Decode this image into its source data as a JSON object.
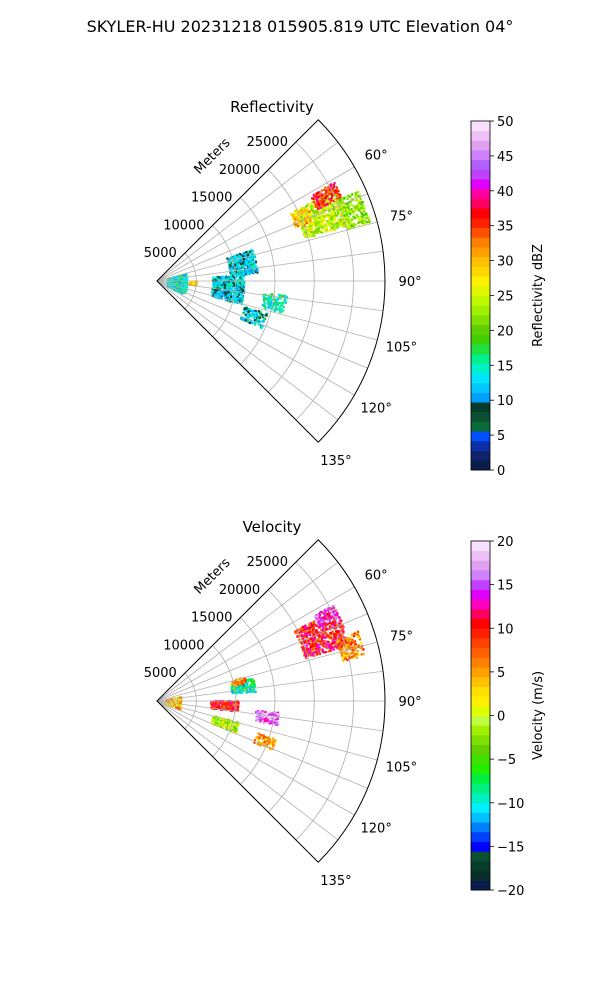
{
  "figure": {
    "suptitle": "SKYLER-HU  20231218  015905.819 UTC Elevation 04°"
  },
  "chart_data": [
    {
      "type": "heatmap",
      "projection": "polar-sector",
      "title": "Reflectivity",
      "radial_axis_label": "Meters",
      "radial_ticks": [
        5000,
        10000,
        15000,
        20000,
        25000
      ],
      "radial_max": 29000,
      "angle_ticks_deg": [
        60,
        75,
        90,
        105,
        120,
        135
      ],
      "angle_tick_labels": [
        "60°",
        "75°",
        "90°",
        "105°",
        "120°",
        "135°"
      ],
      "angle_range_deg": [
        45,
        135
      ],
      "grid": true,
      "colorbar": {
        "label": "Reflectivity dBZ",
        "min": 0,
        "max": 50,
        "ticks": [
          0,
          5,
          10,
          15,
          20,
          25,
          30,
          35,
          40,
          45,
          50
        ],
        "colors": [
          "#0b1d4a",
          "#10246e",
          "#0a2fa8",
          "#0050ff",
          "#0a6a3a",
          "#0b4f33",
          "#063d2a",
          "#00a0ff",
          "#00c8ff",
          "#00e6ff",
          "#00f0c8",
          "#00f08c",
          "#20e040",
          "#40d000",
          "#60d000",
          "#80e000",
          "#a0f000",
          "#c0f800",
          "#e0f800",
          "#fff000",
          "#ffd800",
          "#ffc000",
          "#ffa000",
          "#ff8000",
          "#ff5000",
          "#ff2000",
          "#ff0000",
          "#ff0060",
          "#ff00a0",
          "#e000ff",
          "#c040ff",
          "#b060ff",
          "#d080ff",
          "#e0a0f0",
          "#f0c0f8",
          "#f8e0ff"
        ]
      },
      "echo_regions": [
        {
          "az": 68,
          "r": 22500,
          "daz": 11,
          "dr": 6000,
          "value": 24,
          "density": 0.85
        },
        {
          "az": 63,
          "r": 24000,
          "daz": 5,
          "dr": 3500,
          "value": 36,
          "density": 0.8
        },
        {
          "az": 70,
          "r": 26500,
          "daz": 9,
          "dr": 3000,
          "value": 22,
          "density": 0.75
        },
        {
          "az": 66,
          "r": 20000,
          "daz": 6,
          "dr": 2500,
          "value": 30,
          "density": 0.6
        },
        {
          "az": 78,
          "r": 11000,
          "daz": 14,
          "dr": 3500,
          "value": 12,
          "density": 0.7
        },
        {
          "az": 95,
          "r": 9000,
          "daz": 20,
          "dr": 4000,
          "value": 12,
          "density": 0.65
        },
        {
          "az": 100,
          "r": 15000,
          "daz": 8,
          "dr": 3000,
          "value": 15,
          "density": 0.5
        },
        {
          "az": 95,
          "r": 2500,
          "daz": 40,
          "dr": 2500,
          "value": 14,
          "density": 0.7
        },
        {
          "az": 110,
          "r": 13000,
          "daz": 8,
          "dr": 3000,
          "value": 12,
          "density": 0.5
        },
        {
          "az": 92,
          "r": 4500,
          "daz": 6,
          "dr": 1000,
          "value": 30,
          "density": 0.5
        }
      ]
    },
    {
      "type": "heatmap",
      "projection": "polar-sector",
      "title": "Velocity",
      "radial_axis_label": "Meters",
      "radial_ticks": [
        5000,
        10000,
        15000,
        20000,
        25000
      ],
      "radial_max": 29000,
      "angle_ticks_deg": [
        60,
        75,
        90,
        105,
        120,
        135
      ],
      "angle_tick_labels": [
        "60°",
        "75°",
        "90°",
        "105°",
        "120°",
        "135°"
      ],
      "angle_range_deg": [
        45,
        135
      ],
      "grid": true,
      "colorbar": {
        "label": "Velocity (m/s)",
        "min": -20,
        "max": 20,
        "ticks": [
          -20,
          -15,
          -10,
          -5,
          0,
          5,
          10,
          15,
          20
        ],
        "colors": [
          "#0b1d4a",
          "#0a2f2a",
          "#063d2a",
          "#0b4f33",
          "#0000ff",
          "#0040ff",
          "#0080ff",
          "#00c0ff",
          "#00f0ff",
          "#00f0c0",
          "#00f080",
          "#00f040",
          "#20f000",
          "#40e000",
          "#60d000",
          "#80e000",
          "#a0f000",
          "#c0ff40",
          "#e0ff00",
          "#fff000",
          "#ffe000",
          "#ffc000",
          "#ffa000",
          "#ff8000",
          "#ff6000",
          "#ff4000",
          "#ff2000",
          "#ff0000",
          "#ff0060",
          "#ff00c0",
          "#e000ff",
          "#c040ff",
          "#d080ff",
          "#e0a0f0",
          "#f0c0f8",
          "#f8e0ff"
        ]
      },
      "echo_regions": [
        {
          "az": 68,
          "r": 22500,
          "daz": 11,
          "dr": 6000,
          "value": 10,
          "density": 0.85
        },
        {
          "az": 63,
          "r": 24000,
          "daz": 4,
          "dr": 3000,
          "value": 15,
          "density": 0.7
        },
        {
          "az": 74,
          "r": 25500,
          "daz": 7,
          "dr": 3000,
          "value": 6,
          "density": 0.7
        },
        {
          "az": 80,
          "r": 11000,
          "daz": 8,
          "dr": 3000,
          "value": -9,
          "density": 0.75
        },
        {
          "az": 76,
          "r": 10500,
          "daz": 4,
          "dr": 2000,
          "value": 6,
          "density": 0.6
        },
        {
          "az": 93,
          "r": 8500,
          "daz": 8,
          "dr": 3500,
          "value": 10,
          "density": 0.75
        },
        {
          "az": 98,
          "r": 14000,
          "daz": 6,
          "dr": 3000,
          "value": 16,
          "density": 0.65
        },
        {
          "az": 108,
          "r": 9000,
          "daz": 8,
          "dr": 3500,
          "value": -1,
          "density": 0.65
        },
        {
          "az": 93,
          "r": 2000,
          "daz": 30,
          "dr": 2000,
          "value": 4,
          "density": 0.6
        },
        {
          "az": 110,
          "r": 14500,
          "daz": 6,
          "dr": 2500,
          "value": 5,
          "density": 0.5
        }
      ]
    }
  ]
}
